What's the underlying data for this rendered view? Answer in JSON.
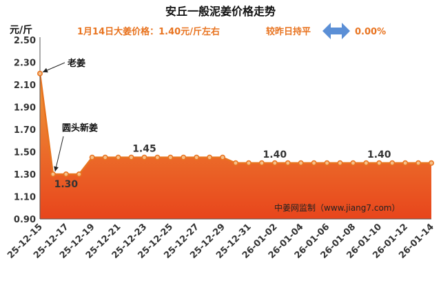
{
  "chart_data": {
    "type": "area",
    "title": "安丘一般泥姜价格走势",
    "subtitle_price": "1月14日大姜价格：1.40元/斤左右",
    "subtitle_change_label": "较昨日持平",
    "subtitle_change_value": "0.00%",
    "ylabel": "元/斤",
    "ylim": [
      0.9,
      2.5
    ],
    "yticks": [
      "0.90",
      "1.10",
      "1.30",
      "1.50",
      "1.70",
      "1.90",
      "2.10",
      "2.30",
      "2.50"
    ],
    "x": [
      "25-12-15",
      "25-12-16",
      "25-12-17",
      "25-12-18",
      "25-12-19",
      "25-12-20",
      "25-12-21",
      "25-12-22",
      "25-12-23",
      "25-12-24",
      "25-12-25",
      "25-12-26",
      "25-12-27",
      "25-12-28",
      "25-12-29",
      "25-12-30",
      "25-12-31",
      "26-01-01",
      "26-01-02",
      "26-01-03",
      "26-01-04",
      "26-01-05",
      "26-01-06",
      "26-01-07",
      "26-01-08",
      "26-01-09",
      "26-01-10",
      "26-01-11",
      "26-01-12",
      "26-01-13",
      "26-01-14"
    ],
    "xticks": [
      "25-12-15",
      "25-12-17",
      "25-12-19",
      "25-12-21",
      "25-12-23",
      "25-12-25",
      "25-12-27",
      "25-12-29",
      "25-12-31",
      "26-01-02",
      "26-01-04",
      "26-01-06",
      "26-01-08",
      "26-01-10",
      "26-01-12",
      "26-01-14"
    ],
    "values": [
      2.2,
      1.3,
      1.3,
      1.3,
      1.45,
      1.45,
      1.45,
      1.45,
      1.45,
      1.45,
      1.45,
      1.45,
      1.45,
      1.45,
      1.45,
      1.4,
      1.4,
      1.4,
      1.4,
      1.4,
      1.4,
      1.4,
      1.4,
      1.4,
      1.4,
      1.4,
      1.4,
      1.4,
      1.4,
      1.4,
      1.4
    ],
    "data_labels": [
      {
        "index": 2,
        "text": "1.30"
      },
      {
        "index": 8,
        "text": "1.45"
      },
      {
        "index": 18,
        "text": "1.40"
      },
      {
        "index": 26,
        "text": "1.40"
      }
    ],
    "annotations": [
      {
        "index": 0,
        "text": "老姜"
      },
      {
        "index": 1,
        "text": "圆头新姜"
      }
    ],
    "watermark": "中姜网监制（www.jiang7.com）",
    "colors": {
      "line": "#e8731f",
      "fill_top": "#ef9a3a",
      "fill_bottom": "#e8451c",
      "marker_fill": "#f6c08a",
      "arrow": "#5b8fd6",
      "subtitle": "#e8731f"
    },
    "grid": false
  }
}
